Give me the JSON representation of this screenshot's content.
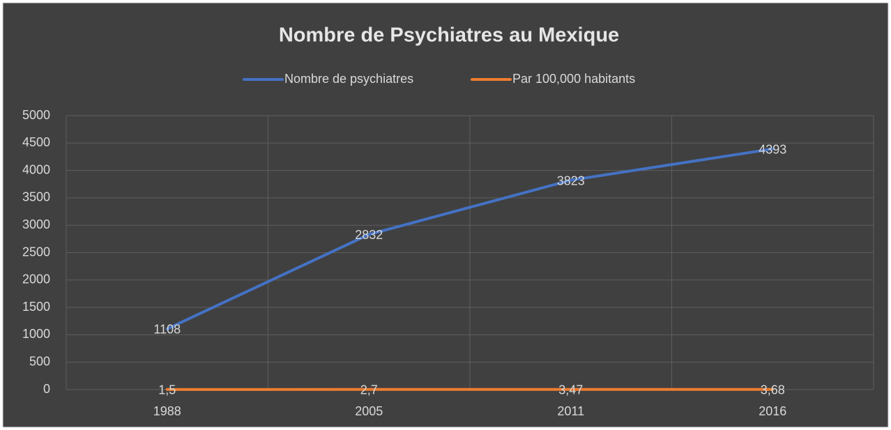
{
  "chart_data": {
    "type": "line",
    "title": "Nombre de Psychiatres au Mexique",
    "categories": [
      "1988",
      "2005",
      "2011",
      "2016"
    ],
    "series": [
      {
        "name": "Nombre de psychiatres",
        "color": "#4472c4",
        "values": [
          1108,
          2832,
          3823,
          4393
        ]
      },
      {
        "name": "Par 100,000 habitants",
        "color": "#ed7d31",
        "values": [
          1.5,
          2.7,
          3.47,
          3.68
        ],
        "value_labels": [
          "1,5",
          "2,7",
          "3,47",
          "3,68"
        ]
      }
    ],
    "ylim": [
      0,
      5000
    ],
    "yticks": [
      0,
      500,
      1000,
      1500,
      2000,
      2500,
      3000,
      3500,
      4000,
      4500,
      5000
    ],
    "grid": true,
    "legend": "top"
  }
}
